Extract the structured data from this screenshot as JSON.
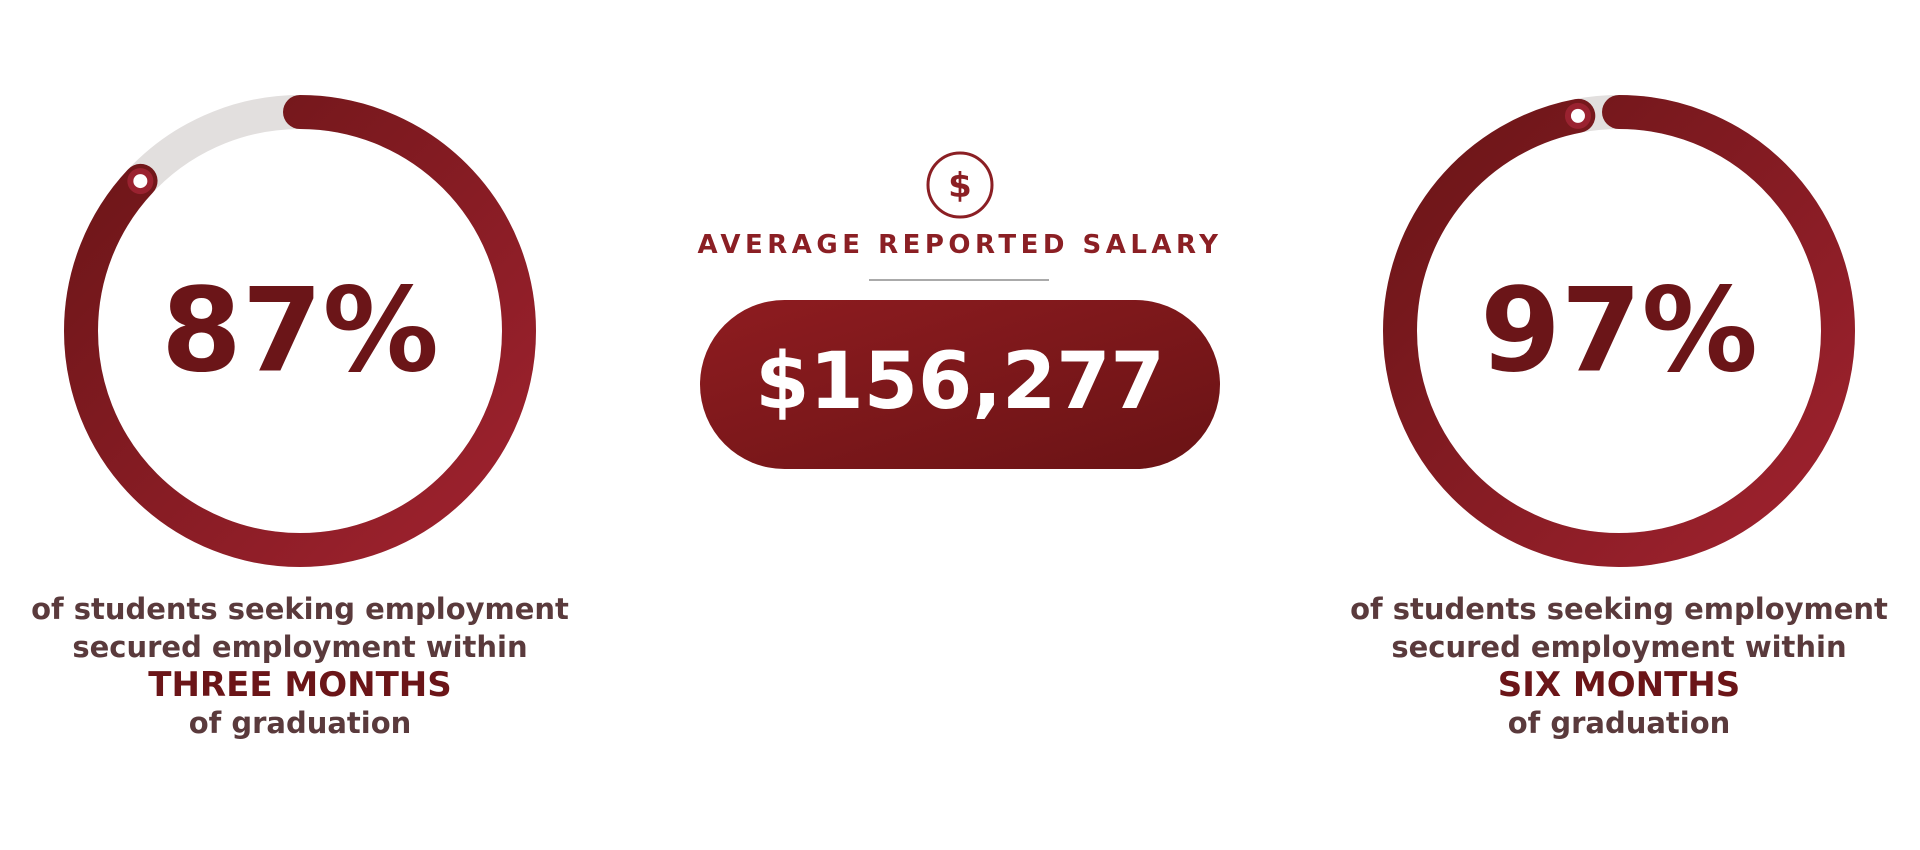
{
  "stats": [
    {
      "value": 87,
      "label": "87%",
      "lines": [
        "of students seeking employment",
        "secured employment within"
      ],
      "emphasis": "THREE MONTHS",
      "tail": "of graduation"
    },
    {
      "value": 97,
      "label": "97%",
      "lines": [
        "of students seeking employment",
        "secured employment within"
      ],
      "emphasis": "SIX MONTHS",
      "tail": "of graduation"
    }
  ],
  "salary": {
    "icon": "$",
    "title": "AVERAGE REPORTED SALARY",
    "value": "$156,277"
  }
}
